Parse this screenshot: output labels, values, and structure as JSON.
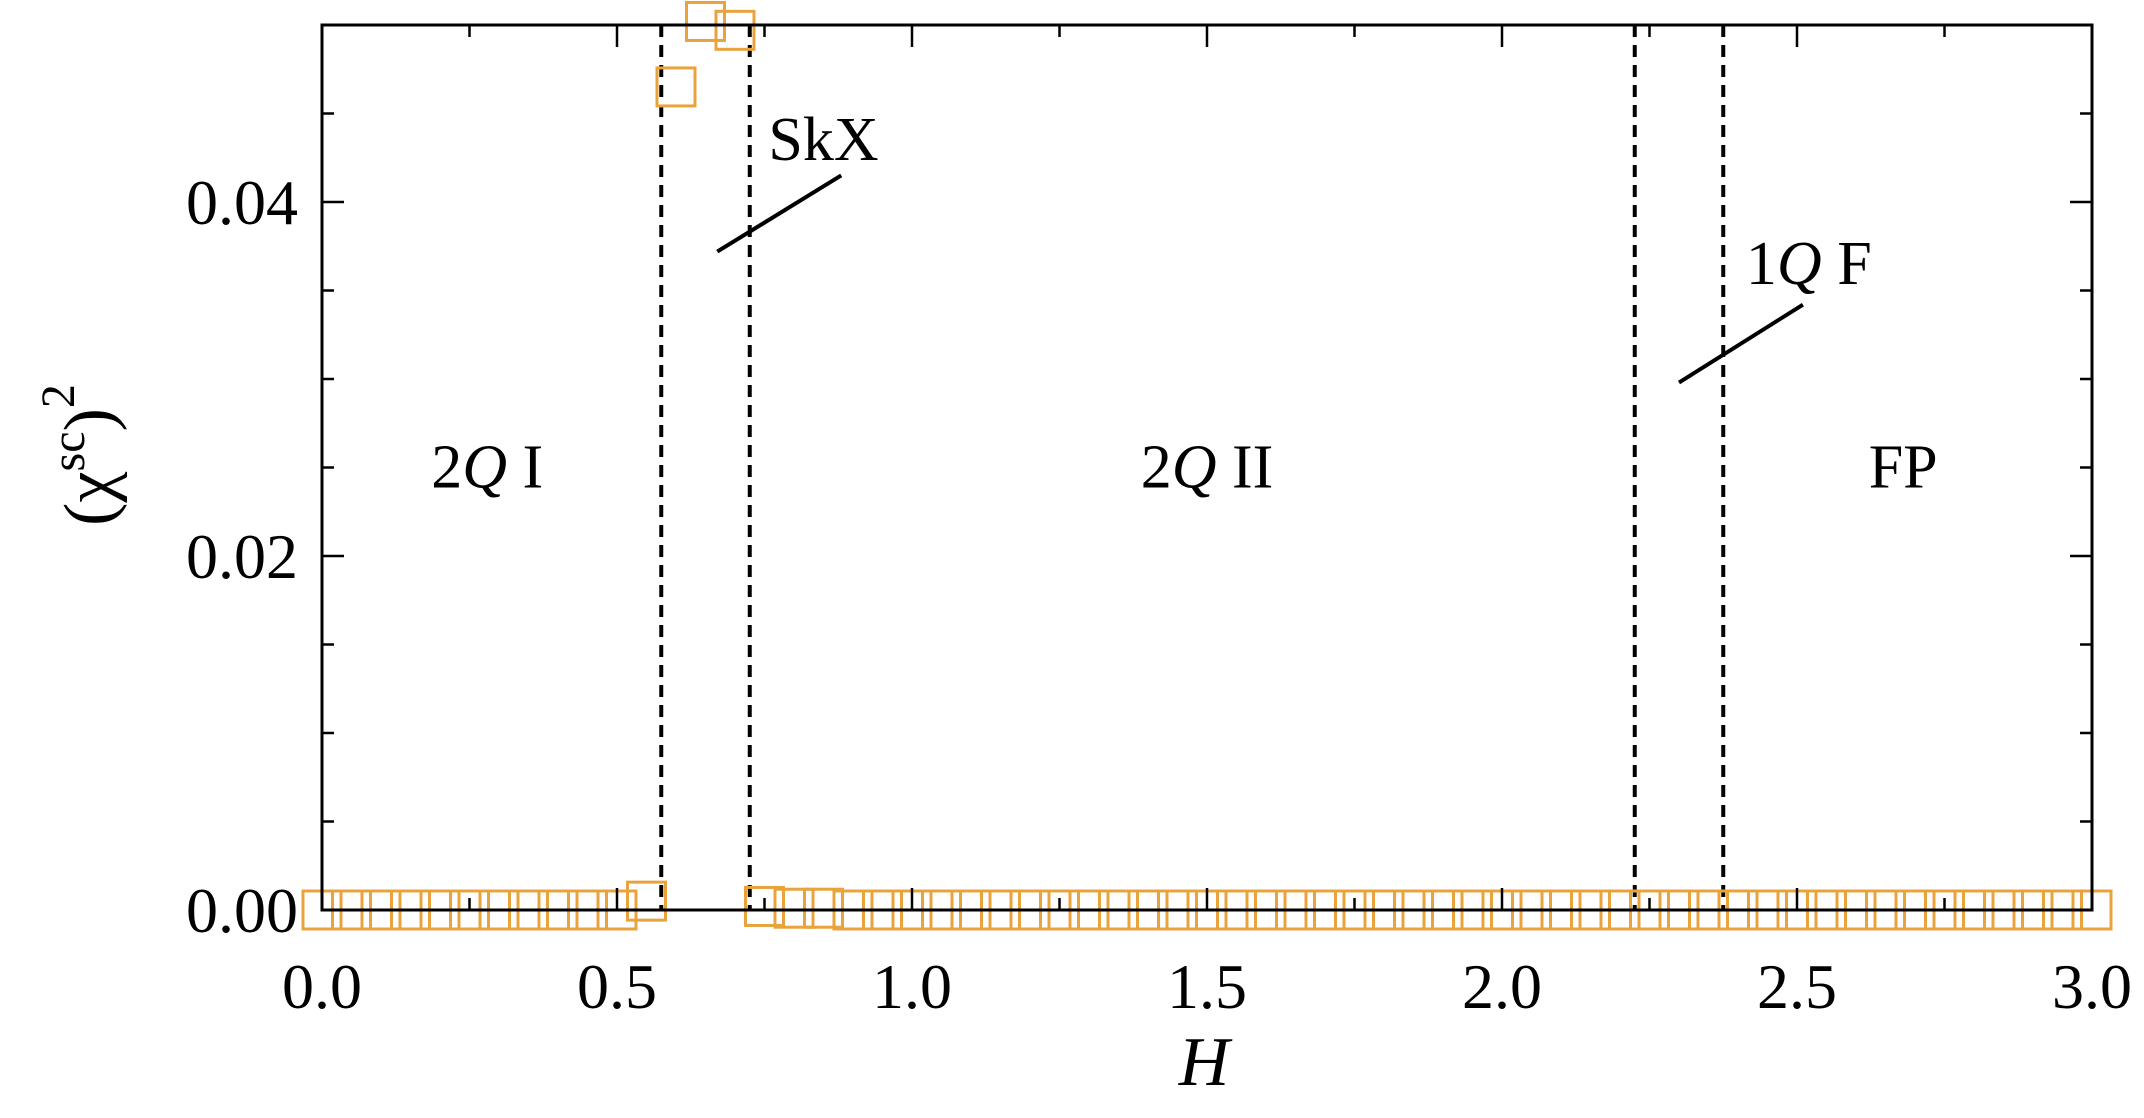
{
  "chart_data": {
    "type": "scatter",
    "xlabel": "H",
    "ylabel_base": "(χ",
    "ylabel_sup": "sc",
    "ylabel_close": ")",
    "ylabel_power": "2",
    "xlim": [
      0.0,
      3.0
    ],
    "ylim": [
      0.0,
      0.05
    ],
    "x_ticks": [
      0.0,
      0.5,
      1.0,
      1.5,
      2.0,
      2.5,
      3.0
    ],
    "x_tick_labels": [
      "0.0",
      "0.5",
      "1.0",
      "1.5",
      "2.0",
      "2.5",
      "3.0"
    ],
    "y_ticks": [
      0.0,
      0.02,
      0.04
    ],
    "y_tick_labels": [
      "0.00",
      "0.02",
      "0.04"
    ],
    "y_minor_ticks": [
      0.005,
      0.01,
      0.015,
      0.025,
      0.03,
      0.035,
      0.045
    ],
    "x_minor_ticks": [
      0.25,
      0.75,
      1.25,
      1.75,
      2.25,
      2.75
    ],
    "grid": false,
    "marker": "open-square",
    "marker_color": "#e8a33d",
    "series": [
      {
        "x": [
          0.0,
          0.05,
          0.1,
          0.15,
          0.2,
          0.25,
          0.3,
          0.35,
          0.4,
          0.45,
          0.5,
          0.55,
          0.6,
          0.65,
          0.7,
          0.75,
          0.8,
          0.85,
          0.9,
          0.95,
          1.0,
          1.05,
          1.1,
          1.15,
          1.2,
          1.25,
          1.3,
          1.35,
          1.4,
          1.45,
          1.5,
          1.55,
          1.6,
          1.65,
          1.7,
          1.75,
          1.8,
          1.85,
          1.9,
          1.95,
          2.0,
          2.05,
          2.1,
          2.15,
          2.2,
          2.25,
          2.3,
          2.35,
          2.4,
          2.45,
          2.5,
          2.55,
          2.6,
          2.65,
          2.7,
          2.75,
          2.8,
          2.85,
          2.9,
          2.95,
          3.0
        ],
        "y": [
          0.0,
          0.0,
          0.0,
          0.0,
          0.0,
          0.0,
          0.0,
          0.0,
          0.0,
          0.0,
          0.0,
          0.0005,
          0.0465,
          0.0502,
          0.0497,
          0.0002,
          0.0001,
          0.0001,
          0.0,
          0.0,
          0.0,
          0.0,
          0.0,
          0.0,
          0.0,
          0.0,
          0.0,
          0.0,
          0.0,
          0.0,
          0.0,
          0.0,
          0.0,
          0.0,
          0.0,
          0.0,
          0.0,
          0.0,
          0.0,
          0.0,
          0.0,
          0.0,
          0.0,
          0.0,
          0.0,
          0.0,
          0.0,
          0.0,
          0.0,
          0.0,
          0.0,
          0.0,
          0.0,
          0.0,
          0.0,
          0.0,
          0.0,
          0.0,
          0.0,
          0.0,
          0.0
        ]
      }
    ],
    "phase_boundaries": [
      0.575,
      0.725,
      2.225,
      2.375
    ],
    "phase_labels": [
      {
        "num": "2",
        "q": "Q",
        "rest": " I",
        "x": 0.28,
        "y": 0.025
      },
      {
        "num": "2",
        "q": "Q",
        "rest": " II",
        "x": 1.5,
        "y": 0.025
      },
      {
        "num": "",
        "q": "",
        "rest": "FP",
        "x": 2.68,
        "y": 0.025
      },
      {
        "num": "",
        "q": "",
        "rest": "SkX",
        "x": 0.85,
        "y": 0.0435
      },
      {
        "num": "1",
        "q": "Q",
        "rest": " F",
        "x": 2.52,
        "y": 0.0365
      }
    ],
    "annotation_lines": [
      {
        "x1": 0.67,
        "y1": 0.0372,
        "x2": 0.88,
        "y2": 0.0415
      },
      {
        "x1": 2.3,
        "y1": 0.0298,
        "x2": 2.51,
        "y2": 0.0342
      }
    ]
  }
}
